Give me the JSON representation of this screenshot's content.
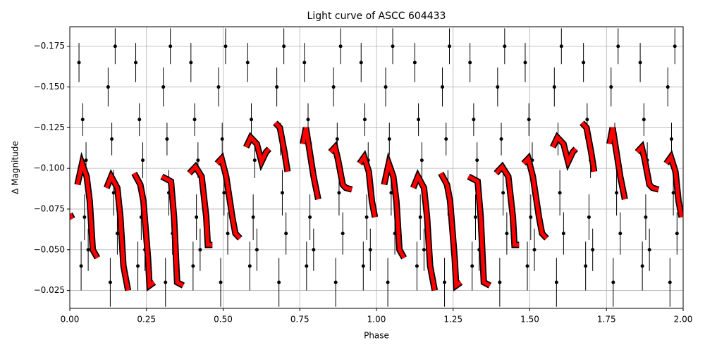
{
  "chart_data": {
    "type": "scatter",
    "title": "Light curve of ASCC 604433",
    "xlabel": "Phase",
    "ylabel": "Δ Magnitude",
    "xlim": [
      0,
      2
    ],
    "ylim": [
      -0.014,
      -0.187
    ],
    "grid": true,
    "xticks": [
      {
        "value": 0,
        "label": "0.00"
      },
      {
        "value": 0.25,
        "label": "0.25"
      },
      {
        "value": 0.5,
        "label": "0.50"
      },
      {
        "value": 0.75,
        "label": "0.75"
      },
      {
        "value": 1,
        "label": "1.00"
      },
      {
        "value": 1.25,
        "label": "1.25"
      },
      {
        "value": 1.5,
        "label": "1.50"
      },
      {
        "value": 1.75,
        "label": "1.75"
      },
      {
        "value": 2,
        "label": "2.00"
      }
    ],
    "yticks": [
      {
        "value": -0.175,
        "label": "−0.175"
      },
      {
        "value": -0.15,
        "label": "−0.150"
      },
      {
        "value": -0.125,
        "label": "−0.125"
      },
      {
        "value": -0.1,
        "label": "−0.100"
      },
      {
        "value": -0.075,
        "label": "−0.075"
      },
      {
        "value": -0.05,
        "label": "−0.050"
      },
      {
        "value": -0.025,
        "label": "−0.025"
      }
    ],
    "series": [
      {
        "type": "errorbar",
        "color": "#000000",
        "x": [
          0.03,
          0.037,
          0.042,
          0.048,
          0.053,
          0.06,
          0.125,
          0.132,
          0.137,
          0.143,
          0.148,
          0.155,
          0.215,
          0.222,
          0.227,
          0.233,
          0.238,
          0.245,
          0.305,
          0.312,
          0.317,
          0.323,
          0.328,
          0.335,
          0.395,
          0.402,
          0.407,
          0.413,
          0.418,
          0.425,
          0.485,
          0.492,
          0.497,
          0.503,
          0.508,
          0.515,
          0.58,
          0.587,
          0.592,
          0.598,
          0.603,
          0.61,
          0.675,
          0.682,
          0.687,
          0.693,
          0.698,
          0.705,
          0.765,
          0.772,
          0.777,
          0.783,
          0.788,
          0.795,
          0.86,
          0.867,
          0.872,
          0.878,
          0.883,
          0.89,
          0.95,
          0.957,
          0.962,
          0.968,
          0.973,
          0.98,
          1.03,
          1.037,
          1.042,
          1.048,
          1.053,
          1.06,
          1.125,
          1.132,
          1.137,
          1.143,
          1.148,
          1.155,
          1.215,
          1.222,
          1.227,
          1.233,
          1.238,
          1.245,
          1.305,
          1.312,
          1.317,
          1.323,
          1.328,
          1.335,
          1.395,
          1.402,
          1.407,
          1.413,
          1.418,
          1.425,
          1.485,
          1.492,
          1.497,
          1.503,
          1.508,
          1.515,
          1.58,
          1.587,
          1.592,
          1.598,
          1.603,
          1.61,
          1.675,
          1.682,
          1.687,
          1.693,
          1.698,
          1.705,
          1.765,
          1.772,
          1.777,
          1.783,
          1.788,
          1.795,
          1.86,
          1.867,
          1.872,
          1.878,
          1.883,
          1.89,
          1.95,
          1.957,
          1.962,
          1.968,
          1.973,
          1.98
        ],
        "y": [
          -0.165,
          -0.04,
          -0.13,
          -0.07,
          -0.105,
          -0.05,
          -0.15,
          -0.03,
          -0.118,
          -0.085,
          -0.175,
          -0.06,
          -0.165,
          -0.04,
          -0.13,
          -0.07,
          -0.105,
          -0.05,
          -0.15,
          -0.03,
          -0.118,
          -0.085,
          -0.175,
          -0.06,
          -0.165,
          -0.04,
          -0.13,
          -0.07,
          -0.105,
          -0.05,
          -0.15,
          -0.03,
          -0.118,
          -0.085,
          -0.175,
          -0.06,
          -0.165,
          -0.04,
          -0.13,
          -0.07,
          -0.105,
          -0.05,
          -0.15,
          -0.03,
          -0.118,
          -0.085,
          -0.175,
          -0.06,
          -0.165,
          -0.04,
          -0.13,
          -0.07,
          -0.105,
          -0.05,
          -0.15,
          -0.03,
          -0.118,
          -0.085,
          -0.175,
          -0.06,
          -0.165,
          -0.04,
          -0.13,
          -0.07,
          -0.105,
          -0.05,
          -0.15,
          -0.03,
          -0.118,
          -0.085,
          -0.175,
          -0.06,
          -0.165,
          -0.04,
          -0.13,
          -0.07,
          -0.105,
          -0.05,
          -0.15,
          -0.03,
          -0.118,
          -0.085,
          -0.175,
          -0.06,
          -0.165,
          -0.04,
          -0.13,
          -0.07,
          -0.105,
          -0.05,
          -0.15,
          -0.03,
          -0.118,
          -0.085,
          -0.175,
          -0.06,
          -0.165,
          -0.04,
          -0.13,
          -0.07,
          -0.105,
          -0.05,
          -0.15,
          -0.03,
          -0.118,
          -0.085,
          -0.175,
          -0.06,
          -0.165,
          -0.04,
          -0.13,
          -0.07,
          -0.105,
          -0.05,
          -0.15,
          -0.03,
          -0.118,
          -0.085,
          -0.175,
          -0.06,
          -0.165,
          -0.04,
          -0.13,
          -0.07,
          -0.105,
          -0.05,
          -0.15,
          -0.03,
          -0.118,
          -0.085,
          -0.175,
          -0.06
        ],
        "yerr": [
          0.012,
          0.015,
          0.01,
          0.014,
          0.011,
          0.013,
          0.012,
          0.015,
          0.01,
          0.014,
          0.011,
          0.013,
          0.012,
          0.015,
          0.01,
          0.014,
          0.011,
          0.013,
          0.012,
          0.015,
          0.01,
          0.014,
          0.011,
          0.013,
          0.012,
          0.015,
          0.01,
          0.014,
          0.011,
          0.013,
          0.012,
          0.015,
          0.01,
          0.014,
          0.011,
          0.013,
          0.012,
          0.015,
          0.01,
          0.014,
          0.011,
          0.013,
          0.012,
          0.015,
          0.01,
          0.014,
          0.011,
          0.013,
          0.012,
          0.015,
          0.01,
          0.014,
          0.011,
          0.013,
          0.012,
          0.015,
          0.01,
          0.014,
          0.011,
          0.013,
          0.012,
          0.015,
          0.01,
          0.014,
          0.011,
          0.013,
          0.012,
          0.015,
          0.01,
          0.014,
          0.011,
          0.013,
          0.012,
          0.015,
          0.01,
          0.014,
          0.011,
          0.013,
          0.012,
          0.015,
          0.01,
          0.014,
          0.011,
          0.013,
          0.012,
          0.015,
          0.01,
          0.014,
          0.011,
          0.013,
          0.012,
          0.015,
          0.01,
          0.014,
          0.011,
          0.013,
          0.012,
          0.015,
          0.01,
          0.014,
          0.011,
          0.013,
          0.012,
          0.015,
          0.01,
          0.014,
          0.011,
          0.013,
          0.012,
          0.015,
          0.01,
          0.014,
          0.011,
          0.013,
          0.012,
          0.015,
          0.01,
          0.014,
          0.011,
          0.013,
          0.012,
          0.015,
          0.01,
          0.014,
          0.011,
          0.013,
          0.012,
          0.015,
          0.01,
          0.014,
          0.011,
          0.013
        ]
      },
      {
        "type": "line",
        "color": "#ff0000",
        "x": [
          0,
          0.008,
          null,
          0.025,
          0.04,
          0.055,
          0.065,
          0.075,
          0.09,
          null,
          0.12,
          0.135,
          0.155,
          0.165,
          0.175,
          0.19,
          null,
          0.21,
          0.23,
          0.24,
          0.255,
          0.26,
          0.275,
          null,
          0.3,
          0.33,
          0.34,
          0.35,
          0.37,
          null,
          0.39,
          0.41,
          0.43,
          0.445,
          0.45,
          0.465,
          null,
          0.48,
          0.495,
          0.51,
          0.53,
          0.54,
          0.555,
          null,
          0.575,
          0.59,
          0.61,
          0.625,
          0.64,
          0.65,
          null,
          0.67,
          0.685,
          0.7,
          0.71,
          null,
          0.76,
          0.77,
          0.78,
          0.795,
          0.81,
          null,
          0.85,
          0.865,
          0.875,
          0.89,
          0.9,
          0.92,
          null,
          0.945,
          0.96,
          0.975,
          0.985,
          0.995,
          null,
          1.025,
          1.04,
          1.055,
          1.065,
          1.075,
          1.09,
          null,
          1.12,
          1.135,
          1.155,
          1.165,
          1.175,
          1.19,
          null,
          1.21,
          1.23,
          1.24,
          1.255,
          1.26,
          1.275,
          null,
          1.3,
          1.33,
          1.34,
          1.35,
          1.37,
          null,
          1.39,
          1.41,
          1.43,
          1.445,
          1.45,
          1.465,
          null,
          1.48,
          1.495,
          1.51,
          1.53,
          1.54,
          1.555,
          null,
          1.575,
          1.59,
          1.61,
          1.625,
          1.64,
          1.65,
          null,
          1.67,
          1.685,
          1.7,
          1.71,
          null,
          1.76,
          1.77,
          1.78,
          1.795,
          1.81,
          null,
          1.85,
          1.865,
          1.875,
          1.89,
          1.9,
          1.92,
          null,
          1.945,
          1.96,
          1.975,
          1.985,
          1.995
        ],
        "y": [
          -0.072,
          -0.069,
          null,
          -0.09,
          -0.103,
          -0.095,
          -0.08,
          -0.05,
          -0.045,
          null,
          -0.088,
          -0.095,
          -0.088,
          -0.07,
          -0.04,
          -0.025,
          null,
          -0.097,
          -0.09,
          -0.08,
          -0.045,
          -0.028,
          -0.03,
          null,
          -0.095,
          -0.092,
          -0.07,
          -0.03,
          -0.028,
          null,
          -0.097,
          -0.101,
          -0.095,
          -0.07,
          -0.053,
          -0.053,
          null,
          -0.103,
          -0.106,
          -0.095,
          -0.07,
          -0.06,
          -0.057,
          null,
          -0.113,
          -0.119,
          -0.115,
          -0.104,
          -0.11,
          -0.112,
          null,
          -0.128,
          -0.125,
          -0.11,
          -0.098,
          null,
          -0.115,
          -0.125,
          -0.113,
          -0.095,
          -0.081,
          null,
          -0.11,
          -0.113,
          -0.105,
          -0.09,
          -0.088,
          -0.087,
          null,
          -0.103,
          -0.107,
          -0.098,
          -0.08,
          -0.07,
          null,
          -0.09,
          -0.103,
          -0.095,
          -0.08,
          -0.05,
          -0.045,
          null,
          -0.088,
          -0.095,
          -0.088,
          -0.07,
          -0.04,
          -0.025,
          null,
          -0.097,
          -0.09,
          -0.08,
          -0.045,
          -0.028,
          -0.03,
          null,
          -0.095,
          -0.092,
          -0.07,
          -0.03,
          -0.028,
          null,
          -0.097,
          -0.101,
          -0.095,
          -0.07,
          -0.053,
          -0.053,
          null,
          -0.103,
          -0.106,
          -0.095,
          -0.07,
          -0.06,
          -0.057,
          null,
          -0.113,
          -0.119,
          -0.115,
          -0.104,
          -0.11,
          -0.112,
          null,
          -0.128,
          -0.125,
          -0.11,
          -0.098,
          null,
          -0.115,
          -0.125,
          -0.113,
          -0.095,
          -0.081,
          null,
          -0.11,
          -0.113,
          -0.105,
          -0.09,
          -0.088,
          -0.087,
          null,
          -0.103,
          -0.107,
          -0.098,
          -0.08,
          -0.07
        ]
      }
    ]
  }
}
